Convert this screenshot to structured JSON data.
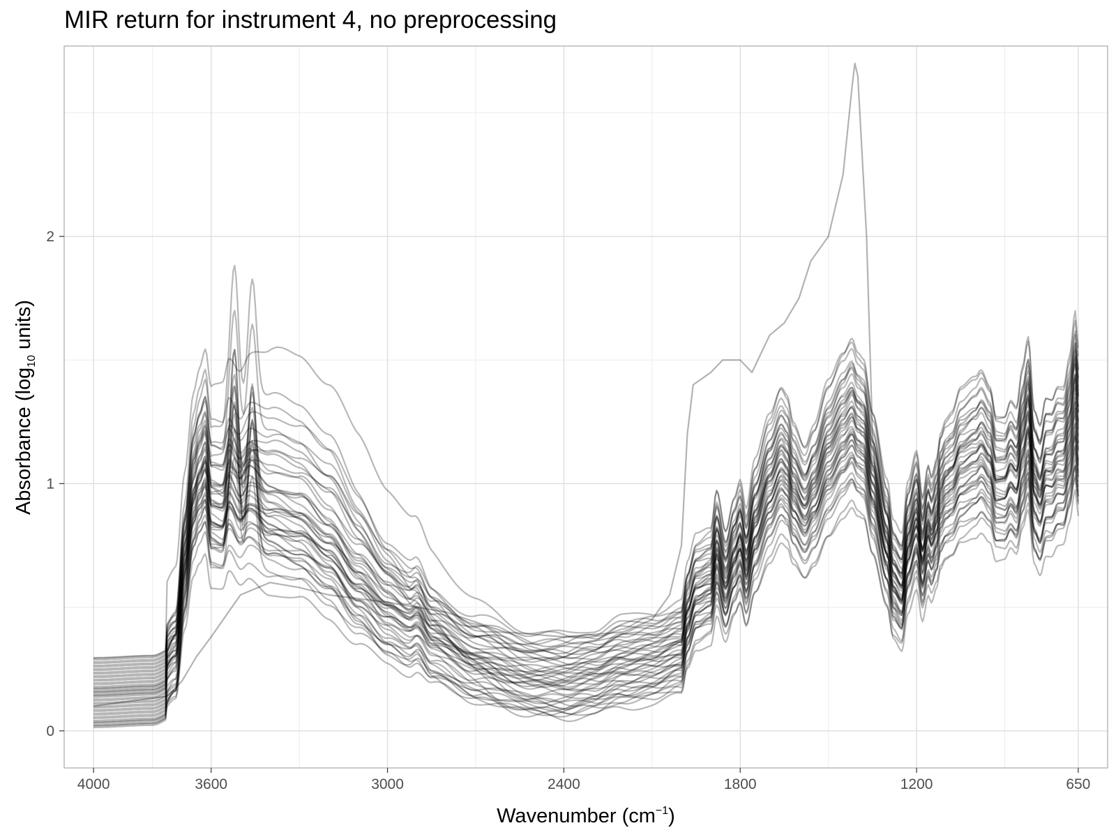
{
  "chart_data": {
    "type": "line",
    "title": "MIR return for instrument 4, no preprocessing",
    "xlabel_main": "Wavenumber",
    "xlabel_unit_base": "cm",
    "xlabel_unit_exp": "−1",
    "ylabel_main": "Absorbance",
    "ylabel_unit_base": "log",
    "ylabel_unit_sub": "10",
    "ylabel_unit_tail": "units",
    "x_reversed": true,
    "xlim": [
      4100,
      550
    ],
    "ylim": [
      -0.15,
      2.77
    ],
    "x_ticks": [
      4000,
      3600,
      3000,
      2400,
      1800,
      1200,
      650
    ],
    "x_tick_labels": [
      "4000",
      "3600",
      "3000",
      "2400",
      "1800",
      "1200",
      "650"
    ],
    "x_minor_gridlines": [
      3800,
      3300,
      2700,
      2100,
      1500,
      900
    ],
    "y_ticks": [
      0,
      1,
      2
    ],
    "y_tick_labels": [
      "0",
      "1",
      "2"
    ],
    "y_minor_gridlines": [
      0.5,
      1.5,
      2.5
    ],
    "grid": true,
    "legend": "none",
    "line_color": "#000000",
    "line_opacity": 0.28,
    "series_count": 46,
    "base_profile": {
      "x": [
        4000,
        3800,
        3720,
        3690,
        3660,
        3640,
        3620,
        3600,
        3560,
        3540,
        3500,
        3470,
        3400,
        3300,
        3200,
        3100,
        3000,
        2925,
        2900,
        2850,
        2700,
        2500,
        2400,
        2300,
        2200,
        2100,
        2000,
        1980,
        1950,
        1900,
        1880,
        1850,
        1820,
        1800,
        1780,
        1750,
        1700,
        1660,
        1640,
        1620,
        1580,
        1550,
        1500,
        1450,
        1420,
        1400,
        1380,
        1350,
        1300,
        1280,
        1250,
        1230,
        1200,
        1180,
        1160,
        1150,
        1130,
        1120,
        1100,
        1080,
        1050,
        1000,
        980,
        950,
        930,
        900,
        880,
        860,
        840,
        820,
        800,
        780,
        760,
        740,
        720,
        700,
        680,
        660,
        650
      ],
      "y": [
        0.1,
        0.13,
        0.25,
        0.6,
        0.88,
        0.95,
        1.0,
        0.82,
        0.8,
        0.88,
        0.8,
        0.84,
        0.78,
        0.74,
        0.65,
        0.52,
        0.42,
        0.38,
        0.4,
        0.33,
        0.25,
        0.2,
        0.2,
        0.22,
        0.26,
        0.28,
        0.32,
        0.45,
        0.55,
        0.58,
        0.72,
        0.58,
        0.7,
        0.76,
        0.65,
        0.82,
        0.98,
        1.08,
        1.05,
        0.96,
        0.88,
        0.95,
        1.1,
        1.2,
        1.25,
        1.2,
        1.18,
        1.0,
        0.75,
        0.6,
        0.55,
        0.74,
        0.86,
        0.7,
        0.82,
        0.78,
        0.85,
        0.93,
        0.98,
        1.0,
        1.08,
        1.12,
        1.15,
        1.1,
        1.0,
        1.0,
        1.05,
        1.02,
        1.15,
        1.25,
        1.0,
        0.95,
        1.05,
        1.05,
        1.1,
        1.1,
        1.2,
        1.35,
        1.22
      ]
    },
    "outlier_series": {
      "x": [
        4000,
        3750,
        3700,
        3650,
        3600,
        3500,
        3400,
        3300,
        3200,
        3000,
        2800,
        2600,
        2400,
        2200,
        2100,
        2040,
        2000,
        1980,
        1960,
        1900,
        1860,
        1800,
        1760,
        1700,
        1650,
        1600,
        1560,
        1500,
        1450,
        1420,
        1410,
        1400,
        1370,
        1350,
        1330,
        1300
      ],
      "y": [
        0.1,
        0.14,
        0.2,
        0.3,
        0.38,
        0.55,
        0.6,
        0.58,
        0.55,
        0.52,
        0.48,
        0.4,
        0.38,
        0.4,
        0.45,
        0.55,
        0.75,
        1.2,
        1.4,
        1.45,
        1.5,
        1.5,
        1.45,
        1.6,
        1.65,
        1.75,
        1.9,
        2.0,
        2.25,
        2.6,
        2.7,
        2.65,
        2.0,
        1.2,
        0.85,
        0.7
      ]
    }
  }
}
